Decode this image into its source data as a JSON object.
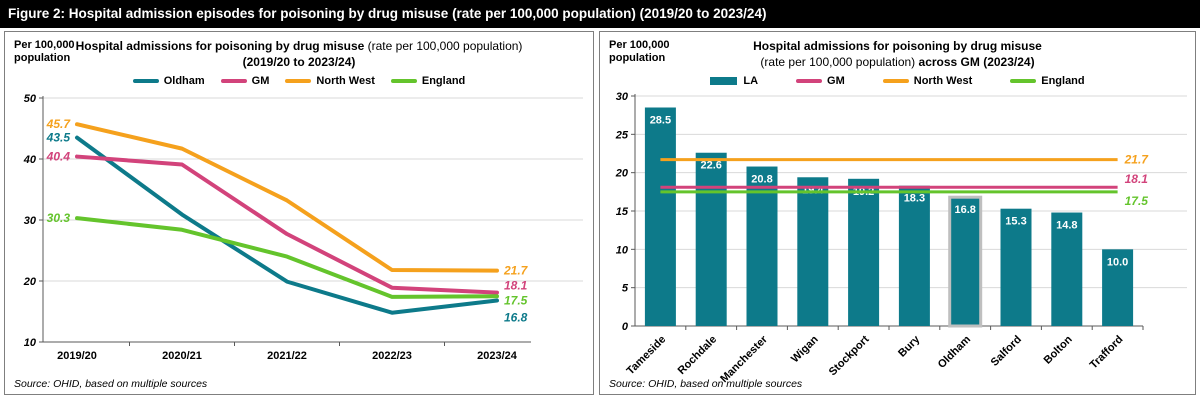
{
  "header": {
    "title": "Figure 2: Hospital admission episodes for poisoning by drug misuse (rate per 100,000 population) (2019/20 to 2023/24)"
  },
  "colors": {
    "teal": "#0D7A8A",
    "pink": "#D2437B",
    "orange": "#F5A11D",
    "green": "#64C42C",
    "grid": "#D9D9D9",
    "axis": "#595959",
    "highlight_border": "#BFBFBF",
    "header_bg": "#000000",
    "header_text": "#FFFFFF"
  },
  "chart_data": [
    {
      "type": "line",
      "title_bold": "Hospital admissions for poisoning by drug misuse",
      "title_normal": " (rate per 100,000 population)",
      "title_line2": "(2019/20 to 2023/24)",
      "y_unit_label": "Per 100,000 population",
      "categories": [
        "2019/20",
        "2020/21",
        "2021/22",
        "2022/23",
        "2023/24"
      ],
      "series": [
        {
          "name": "Oldham",
          "color_key": "teal",
          "values": [
            43.5,
            30.9,
            19.9,
            14.8,
            16.8
          ]
        },
        {
          "name": "GM",
          "color_key": "pink",
          "values": [
            40.4,
            39.1,
            27.7,
            18.9,
            18.1
          ]
        },
        {
          "name": "North West",
          "color_key": "orange",
          "values": [
            45.7,
            41.7,
            33.2,
            21.8,
            21.7
          ]
        },
        {
          "name": "England",
          "color_key": "green",
          "values": [
            30.3,
            28.4,
            24.0,
            17.4,
            17.5
          ]
        }
      ],
      "ylim": [
        10,
        50
      ],
      "yticks": [
        10,
        20,
        30,
        40,
        50
      ],
      "grid": true,
      "legend_position": "top",
      "source": "Source: OHID, based on multiple sources"
    },
    {
      "type": "bar",
      "title_bold": "Hospital admissions for poisoning by drug misuse",
      "title_normal": "(rate per 100,000 population) ",
      "title_bold2": "across GM (2023/24)",
      "y_unit_label": "Per 100,000 population",
      "bar_series_name": "LA",
      "categories": [
        "Tameside",
        "Rochdale",
        "Manchester",
        "Wigan",
        "Stockport",
        "Bury",
        "Oldham",
        "Salford",
        "Bolton",
        "Trafford"
      ],
      "values": [
        28.5,
        22.6,
        20.8,
        19.4,
        19.2,
        18.3,
        16.8,
        15.3,
        14.8,
        10.0
      ],
      "highlighted_category": "Oldham",
      "ref_lines": [
        {
          "name": "GM",
          "value": 18.1,
          "color_key": "pink"
        },
        {
          "name": "North West",
          "value": 21.7,
          "color_key": "orange"
        },
        {
          "name": "England",
          "value": 17.5,
          "color_key": "green"
        }
      ],
      "ylim": [
        0,
        30
      ],
      "yticks": [
        0,
        5,
        10,
        15,
        20,
        25,
        30
      ],
      "grid": true,
      "legend_position": "top",
      "source": "Source: OHID, based on multiple sources"
    }
  ]
}
